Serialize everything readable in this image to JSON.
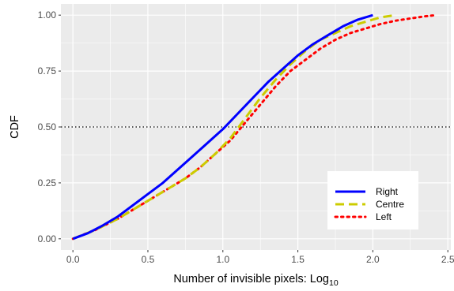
{
  "chart_data": {
    "type": "line",
    "title": "",
    "xlabel": "Number of invisible pixels: Log",
    "xlabel_subscript": "10",
    "ylabel": "CDF",
    "xlim": [
      -0.08,
      2.52
    ],
    "ylim": [
      -0.05,
      1.05
    ],
    "x_ticks": [
      0.0,
      0.5,
      1.0,
      1.5,
      2.0,
      2.5
    ],
    "x_tick_labels": [
      "0.0",
      "0.5",
      "1.0",
      "1.5",
      "2.0",
      "2.5"
    ],
    "y_ticks": [
      0.0,
      0.25,
      0.5,
      0.75,
      1.0
    ],
    "y_tick_labels": [
      "0.00",
      "0.25",
      "0.50",
      "0.75",
      "1.00"
    ],
    "grid": true,
    "background": "#ebebeb",
    "reference_line": {
      "y": 0.5,
      "style": "dotted",
      "color": "#000000"
    },
    "legend": {
      "placement": "bottom-right"
    },
    "series": [
      {
        "name": "Right",
        "color": "#0000ff",
        "dash": "solid",
        "x": [
          0.0,
          0.1,
          0.2,
          0.3,
          0.4,
          0.5,
          0.6,
          0.7,
          0.8,
          0.9,
          1.0,
          1.1,
          1.2,
          1.3,
          1.4,
          1.5,
          1.6,
          1.7,
          1.8,
          1.9,
          2.0
        ],
        "y": [
          0.0,
          0.025,
          0.06,
          0.1,
          0.15,
          0.2,
          0.25,
          0.31,
          0.37,
          0.43,
          0.49,
          0.56,
          0.63,
          0.7,
          0.76,
          0.82,
          0.87,
          0.91,
          0.95,
          0.98,
          1.0
        ]
      },
      {
        "name": "Centre",
        "color": "#cccc00",
        "dash": "dashed",
        "x": [
          0.0,
          0.15,
          0.3,
          0.45,
          0.55,
          0.65,
          0.75,
          0.85,
          0.95,
          1.05,
          1.15,
          1.25,
          1.35,
          1.45,
          1.55,
          1.65,
          1.75,
          1.85,
          1.95,
          2.05,
          2.15
        ],
        "y": [
          0.0,
          0.04,
          0.09,
          0.15,
          0.19,
          0.23,
          0.27,
          0.32,
          0.38,
          0.45,
          0.54,
          0.63,
          0.71,
          0.78,
          0.84,
          0.89,
          0.92,
          0.95,
          0.97,
          0.99,
          1.0
        ]
      },
      {
        "name": "Left",
        "color": "#ff0000",
        "dash": "dotted",
        "x": [
          0.0,
          0.15,
          0.3,
          0.45,
          0.55,
          0.65,
          0.75,
          0.85,
          0.95,
          1.05,
          1.15,
          1.25,
          1.35,
          1.45,
          1.55,
          1.65,
          1.75,
          1.85,
          1.95,
          2.05,
          2.15,
          2.25,
          2.35,
          2.42
        ],
        "y": [
          0.0,
          0.04,
          0.09,
          0.15,
          0.19,
          0.23,
          0.27,
          0.32,
          0.38,
          0.44,
          0.52,
          0.6,
          0.68,
          0.75,
          0.8,
          0.85,
          0.89,
          0.92,
          0.94,
          0.96,
          0.975,
          0.985,
          0.995,
          1.0
        ]
      }
    ]
  }
}
